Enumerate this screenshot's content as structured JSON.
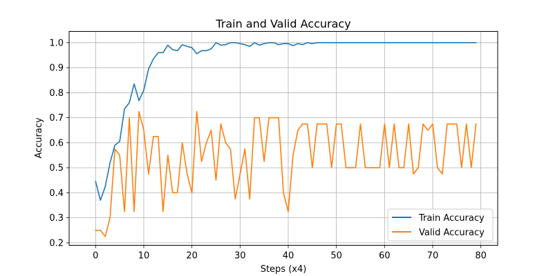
{
  "chart_data": {
    "type": "line",
    "title": "Train and Valid Accuracy",
    "xlabel": "Steps (x4)",
    "ylabel": "Accuracy",
    "xlim": [
      -5.5,
      83.5
    ],
    "ylim": [
      0.19,
      1.045
    ],
    "xticks": [
      0,
      10,
      20,
      30,
      40,
      50,
      60,
      70,
      80
    ],
    "yticks": [
      0.2,
      0.3,
      0.4,
      0.5,
      0.6,
      0.7,
      0.8,
      0.9,
      1.0
    ],
    "xtick_labels": [
      "0",
      "10",
      "20",
      "30",
      "40",
      "50",
      "60",
      "70",
      "80"
    ],
    "ytick_labels": [
      "0.2",
      "0.3",
      "0.4",
      "0.5",
      "0.6",
      "0.7",
      "0.8",
      "0.9",
      "1.0"
    ],
    "grid": true,
    "legend_position": "lower-right",
    "series": [
      {
        "name": "Train Accuracy",
        "color": "#1f77b4",
        "values": [
          0.445,
          0.37,
          0.425,
          0.52,
          0.59,
          0.605,
          0.735,
          0.76,
          0.835,
          0.768,
          0.81,
          0.895,
          0.935,
          0.96,
          0.96,
          0.99,
          0.972,
          0.968,
          0.992,
          0.985,
          0.98,
          0.956,
          0.968,
          0.968,
          0.975,
          1.0,
          0.99,
          0.992,
          1.0,
          1.0,
          0.996,
          0.992,
          0.985,
          1.0,
          0.99,
          0.996,
          1.0,
          1.0,
          0.992,
          0.996,
          0.996,
          0.988,
          0.996,
          0.992,
          1.0,
          0.996,
          1.0,
          1.0,
          1.0,
          1.0,
          1.0,
          1.0,
          1.0,
          1.0,
          1.0,
          1.0,
          1.0,
          1.0,
          1.0,
          1.0,
          1.0,
          1.0,
          1.0,
          1.0,
          1.0,
          1.0,
          1.0,
          1.0,
          1.0,
          1.0,
          1.0,
          1.0,
          1.0,
          1.0,
          1.0,
          1.0,
          1.0,
          1.0,
          1.0,
          1.0
        ]
      },
      {
        "name": "Valid Accuracy",
        "color": "#ff7f0e",
        "values": [
          0.25,
          0.25,
          0.225,
          0.3,
          0.575,
          0.55,
          0.325,
          0.7,
          0.325,
          0.725,
          0.65,
          0.475,
          0.625,
          0.625,
          0.325,
          0.55,
          0.4,
          0.4,
          0.6,
          0.475,
          0.4,
          0.725,
          0.525,
          0.6,
          0.65,
          0.45,
          0.675,
          0.6,
          0.575,
          0.375,
          0.475,
          0.575,
          0.375,
          0.7,
          0.7,
          0.525,
          0.7,
          0.7,
          0.7,
          0.4,
          0.325,
          0.55,
          0.65,
          0.675,
          0.675,
          0.5,
          0.675,
          0.675,
          0.675,
          0.5,
          0.675,
          0.675,
          0.5,
          0.5,
          0.5,
          0.675,
          0.5,
          0.5,
          0.5,
          0.5,
          0.675,
          0.5,
          0.675,
          0.5,
          0.5,
          0.675,
          0.475,
          0.5,
          0.675,
          0.65,
          0.675,
          0.5,
          0.475,
          0.675,
          0.675,
          0.675,
          0.5,
          0.675,
          0.5,
          0.675
        ]
      }
    ]
  }
}
